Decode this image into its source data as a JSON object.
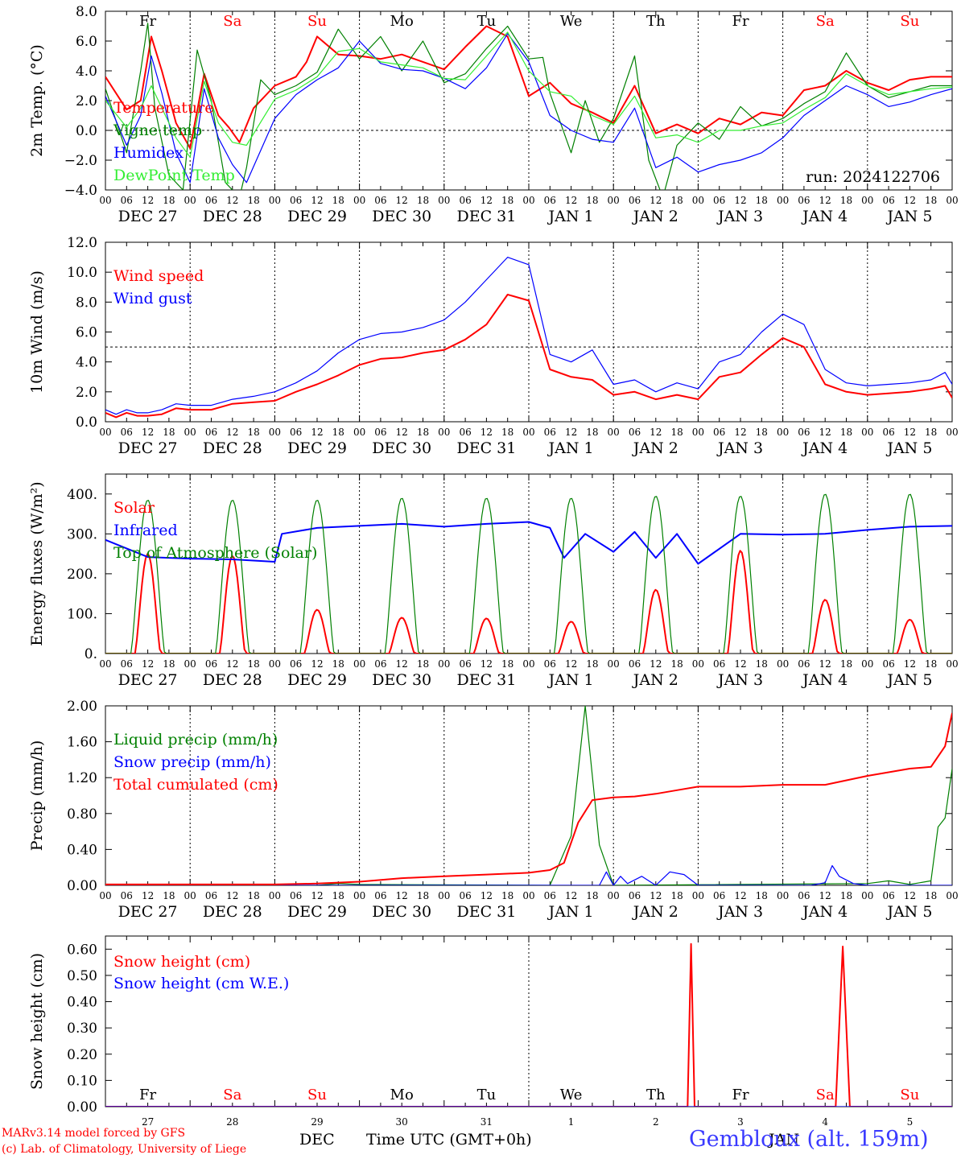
{
  "run_label": "run: 2024122706",
  "footer": {
    "model": "MARv3.14 model forced by GFS",
    "lab": "(c) Lab. of Climatology, University of Liege",
    "xlabel": "Time UTC (GMT+0h)",
    "month_left": "DEC",
    "month_right": "JAN",
    "station": "Gembloux (alt. 159m)"
  },
  "days": {
    "weekdays": [
      "Fr",
      "Sa",
      "Su",
      "Mo",
      "Tu",
      "We",
      "Th",
      "Fr",
      "Sa",
      "Su"
    ],
    "weekend_flags": [
      false,
      true,
      true,
      false,
      false,
      false,
      false,
      false,
      true,
      true
    ],
    "date_labels": [
      "DEC 27",
      "DEC 28",
      "DEC 29",
      "DEC 30",
      "DEC 31",
      "JAN  1",
      "JAN  2",
      "JAN  3",
      "JAN  4",
      "JAN  5"
    ],
    "day_numbers": [
      "27",
      "28",
      "29",
      "30",
      "31",
      "1",
      "2",
      "3",
      "4",
      "5"
    ],
    "hour_ticks": [
      "00",
      "06",
      "12",
      "18"
    ],
    "last_tick": "00"
  },
  "colors": {
    "red": "#ff0000",
    "green": "#008000",
    "blue": "#0000ff",
    "lightgreen": "#33ee33",
    "grid": "#000000"
  },
  "chart_data": [
    {
      "type": "line",
      "id": "temp",
      "ylabel": "2m Temp. (°C)",
      "ylim": [
        -4,
        8
      ],
      "yticks": [
        "8.0",
        "6.0",
        "4.0",
        "2.0",
        "0.0",
        "−2.0",
        "−4.0"
      ],
      "x_unit": "hours since DEC 27 00 UTC",
      "xlim": [
        0,
        240
      ],
      "ref_line": 0,
      "series": [
        {
          "name": "Temperature",
          "color": "red",
          "x": [
            0,
            6,
            10,
            13,
            16,
            20,
            24,
            28,
            32,
            35,
            38,
            42,
            48,
            54,
            57,
            60,
            66,
            72,
            78,
            84,
            90,
            96,
            102,
            108,
            114,
            120,
            126,
            132,
            138,
            144,
            150,
            156,
            162,
            168,
            174,
            180,
            186,
            192,
            198,
            204,
            210,
            216,
            222,
            228,
            234,
            240
          ],
          "y": [
            3.6,
            1.4,
            2.0,
            6.3,
            4.0,
            0.5,
            -1.2,
            3.8,
            1.0,
            0.2,
            -0.8,
            1.5,
            3.0,
            3.6,
            4.6,
            6.3,
            5.1,
            5.0,
            4.8,
            5.1,
            4.6,
            4.1,
            5.6,
            7.0,
            6.3,
            2.3,
            3.2,
            1.8,
            1.2,
            0.5,
            3.0,
            -0.2,
            0.4,
            -0.2,
            0.8,
            0.4,
            1.2,
            1.0,
            2.7,
            3.0,
            4.0,
            3.2,
            2.7,
            3.4,
            3.6,
            3.6
          ]
        },
        {
          "name": "Vigne temp",
          "color": "green",
          "x": [
            0,
            6,
            10,
            12,
            14,
            18,
            22,
            26,
            30,
            34,
            38,
            40,
            44,
            48,
            54,
            60,
            66,
            72,
            78,
            84,
            90,
            96,
            102,
            108,
            114,
            120,
            124,
            126,
            132,
            136,
            140,
            144,
            150,
            154,
            158,
            162,
            168,
            174,
            180,
            186,
            192,
            198,
            204,
            210,
            216,
            222,
            228,
            234,
            240
          ],
          "y": [
            2.8,
            -1.5,
            4.0,
            7.2,
            1.5,
            -3.0,
            -4.0,
            5.4,
            2.0,
            -3.5,
            -4.5,
            -2.5,
            3.4,
            2.4,
            3.0,
            3.9,
            6.8,
            4.8,
            6.3,
            4.0,
            6.0,
            3.2,
            3.8,
            5.5,
            7.0,
            4.8,
            4.9,
            2.5,
            -1.5,
            2.0,
            -0.8,
            0.8,
            5.0,
            -2.0,
            -4.5,
            -1.0,
            0.5,
            -0.6,
            1.6,
            0.3,
            0.8,
            1.8,
            2.6,
            5.2,
            3.0,
            2.2,
            2.6,
            3.0,
            3.0
          ]
        },
        {
          "name": "Humidex",
          "color": "blue",
          "x": [
            0,
            6,
            10,
            13,
            16,
            20,
            24,
            28,
            32,
            36,
            40,
            48,
            54,
            60,
            66,
            72,
            78,
            84,
            90,
            96,
            102,
            108,
            114,
            120,
            126,
            132,
            138,
            144,
            150,
            156,
            162,
            168,
            174,
            180,
            186,
            192,
            198,
            204,
            210,
            216,
            222,
            228,
            234,
            240
          ],
          "y": [
            2.3,
            -1.0,
            1.0,
            5.0,
            2.5,
            -1.5,
            -3.5,
            2.8,
            -0.5,
            -2.3,
            -3.5,
            0.8,
            2.4,
            3.4,
            4.2,
            6.0,
            4.5,
            4.1,
            4.0,
            3.5,
            2.8,
            4.2,
            6.5,
            4.6,
            1.0,
            0.0,
            -0.6,
            -0.8,
            1.5,
            -2.5,
            -1.8,
            -2.8,
            -2.3,
            -2.0,
            -1.5,
            -0.5,
            1.0,
            2.0,
            3.0,
            2.4,
            1.6,
            1.9,
            2.4,
            2.8
          ]
        },
        {
          "name": "DewPoint Temp",
          "color": "lightgreen",
          "x": [
            0,
            6,
            10,
            13,
            16,
            20,
            24,
            28,
            32,
            36,
            40,
            48,
            54,
            60,
            66,
            72,
            78,
            84,
            90,
            96,
            102,
            108,
            114,
            120,
            126,
            132,
            138,
            144,
            150,
            156,
            162,
            168,
            174,
            180,
            186,
            192,
            198,
            204,
            210,
            216,
            222,
            228,
            234,
            240
          ],
          "y": [
            2.0,
            0.2,
            1.5,
            3.0,
            1.5,
            -0.5,
            -1.8,
            3.3,
            0.5,
            -0.8,
            -1.0,
            2.1,
            2.7,
            3.6,
            5.3,
            5.5,
            4.6,
            4.4,
            4.2,
            3.5,
            3.4,
            5.0,
            6.6,
            4.0,
            2.6,
            2.3,
            1.0,
            0.4,
            2.3,
            -0.5,
            -0.3,
            -0.8,
            0.0,
            0.0,
            0.3,
            0.5,
            1.4,
            2.2,
            3.8,
            3.0,
            2.4,
            2.6,
            2.8,
            2.9
          ]
        }
      ]
    },
    {
      "type": "line",
      "id": "wind",
      "ylabel": "10m Wind (m/s)",
      "ylim": [
        0,
        12
      ],
      "yticks": [
        "12.0",
        "10.0",
        "8.0",
        "6.0",
        "4.0",
        "2.0",
        "0.0"
      ],
      "x_unit": "hours since DEC 27 00 UTC",
      "xlim": [
        0,
        240
      ],
      "ref_line": 5,
      "series": [
        {
          "name": "Wind speed",
          "color": "red",
          "x": [
            0,
            3,
            6,
            9,
            12,
            16,
            20,
            24,
            30,
            36,
            42,
            48,
            54,
            60,
            66,
            72,
            78,
            84,
            90,
            96,
            102,
            108,
            114,
            120,
            126,
            132,
            138,
            144,
            150,
            156,
            162,
            168,
            174,
            180,
            186,
            192,
            198,
            204,
            210,
            216,
            222,
            228,
            234,
            238,
            240
          ],
          "y": [
            0.6,
            0.3,
            0.6,
            0.4,
            0.4,
            0.5,
            0.9,
            0.8,
            0.8,
            1.2,
            1.3,
            1.4,
            2.0,
            2.5,
            3.1,
            3.8,
            4.2,
            4.3,
            4.6,
            4.8,
            5.5,
            6.5,
            8.5,
            8.1,
            3.5,
            3.0,
            2.8,
            1.8,
            2.0,
            1.5,
            1.8,
            1.5,
            3.0,
            3.3,
            4.5,
            5.6,
            5.0,
            2.5,
            2.0,
            1.8,
            1.9,
            2.0,
            2.2,
            2.4,
            1.6
          ]
        },
        {
          "name": "Wind gust",
          "color": "blue",
          "x": [
            0,
            3,
            6,
            9,
            12,
            16,
            20,
            24,
            30,
            36,
            42,
            48,
            54,
            60,
            66,
            72,
            78,
            84,
            90,
            96,
            102,
            108,
            114,
            120,
            126,
            132,
            138,
            144,
            150,
            156,
            162,
            168,
            174,
            180,
            186,
            192,
            198,
            204,
            210,
            216,
            222,
            228,
            234,
            238,
            240
          ],
          "y": [
            0.8,
            0.5,
            0.8,
            0.6,
            0.6,
            0.8,
            1.2,
            1.1,
            1.1,
            1.5,
            1.7,
            2.0,
            2.6,
            3.4,
            4.6,
            5.5,
            5.9,
            6.0,
            6.3,
            6.8,
            8.0,
            9.5,
            11.0,
            10.5,
            4.5,
            4.0,
            4.8,
            2.5,
            2.8,
            2.0,
            2.6,
            2.2,
            4.0,
            4.5,
            6.0,
            7.2,
            6.5,
            3.5,
            2.6,
            2.4,
            2.5,
            2.6,
            2.8,
            3.3,
            2.5
          ]
        }
      ]
    },
    {
      "type": "line",
      "id": "energy",
      "ylabel": "Energy fluxes (W/m²)",
      "ylim": [
        0,
        450
      ],
      "yticks": [
        "400.",
        "300.",
        "200.",
        "100.",
        "0."
      ],
      "ytick_values": [
        400,
        300,
        200,
        100,
        0
      ],
      "x_unit": "hours since DEC 27 00 UTC",
      "xlim": [
        0,
        240
      ],
      "series": [
        {
          "name": "Solar",
          "color": "red",
          "daily_peaks": [
            250,
            245,
            110,
            90,
            88,
            80,
            160,
            258,
            135,
            85
          ]
        },
        {
          "name": "Infrared",
          "color": "blue",
          "x": [
            0,
            12,
            24,
            36,
            48,
            50,
            60,
            72,
            84,
            96,
            108,
            120,
            126,
            130,
            136,
            144,
            150,
            156,
            162,
            168,
            180,
            192,
            204,
            216,
            228,
            240
          ],
          "y": [
            285,
            242,
            238,
            236,
            230,
            300,
            315,
            320,
            325,
            318,
            325,
            330,
            315,
            240,
            300,
            255,
            305,
            240,
            300,
            225,
            300,
            298,
            300,
            310,
            318,
            320
          ]
        },
        {
          "name": "Top of Atmosphere (Solar)",
          "color": "green",
          "daily_peaks": [
            385,
            385,
            385,
            390,
            390,
            390,
            395,
            395,
            400,
            400
          ]
        }
      ]
    },
    {
      "type": "line",
      "id": "precip",
      "ylabel": "Precip (mm/h)",
      "ylim": [
        0,
        2.0
      ],
      "yticks": [
        "2.00",
        "1.60",
        "1.20",
        "0.80",
        "0.40",
        "0.00"
      ],
      "x_unit": "hours since DEC 27 00 UTC",
      "xlim": [
        0,
        240
      ],
      "series": [
        {
          "name": "Liquid precip (mm/h)",
          "color": "green",
          "x": [
            0,
            60,
            66,
            72,
            126,
            132,
            136,
            140,
            144,
            216,
            222,
            228,
            234,
            236,
            238,
            240
          ],
          "y": [
            0,
            0,
            0.02,
            0.01,
            0,
            0.55,
            2.0,
            0.45,
            0,
            0.02,
            0.05,
            0.01,
            0.05,
            0.65,
            0.75,
            1.3
          ]
        },
        {
          "name": "Snow precip (mm/h)",
          "color": "blue",
          "x": [
            0,
            140,
            142,
            144,
            146,
            148,
            152,
            156,
            160,
            164,
            168,
            200,
            204,
            206,
            208,
            212,
            216,
            240
          ],
          "y": [
            0,
            0,
            0.15,
            0,
            0.1,
            0.02,
            0.1,
            0.0,
            0.15,
            0.12,
            0,
            0,
            0.03,
            0.22,
            0.1,
            0.02,
            0,
            0
          ]
        },
        {
          "name": "Total cumulated (cm)",
          "color": "red",
          "x": [
            0,
            24,
            48,
            60,
            72,
            84,
            96,
            108,
            120,
            126,
            130,
            134,
            138,
            144,
            150,
            156,
            162,
            168,
            180,
            192,
            204,
            216,
            228,
            234,
            238,
            240
          ],
          "y": [
            0.01,
            0.01,
            0.01,
            0.02,
            0.04,
            0.08,
            0.1,
            0.12,
            0.14,
            0.17,
            0.25,
            0.7,
            0.95,
            0.98,
            0.99,
            1.02,
            1.06,
            1.1,
            1.1,
            1.12,
            1.12,
            1.22,
            1.3,
            1.32,
            1.55,
            1.92
          ]
        }
      ]
    },
    {
      "type": "line",
      "id": "snow",
      "ylabel": "Snow height (cm)",
      "ylim": [
        0,
        0.65
      ],
      "yticks": [
        "0.60",
        "0.50",
        "0.40",
        "0.30",
        "0.20",
        "0.10",
        "0.00"
      ],
      "ytick_values": [
        0.6,
        0.5,
        0.4,
        0.3,
        0.2,
        0.1,
        0.0
      ],
      "x_unit": "hours since DEC 27 00 UTC",
      "xlim": [
        0,
        240
      ],
      "series": [
        {
          "name": "Snow height (cm)",
          "color": "red",
          "x": [
            0,
            165,
            166,
            167,
            207,
            209,
            211,
            240
          ],
          "y": [
            0,
            0,
            0.62,
            0,
            0,
            0.61,
            0,
            0
          ]
        },
        {
          "name": "Snow height (cm W.E.)",
          "color": "blue",
          "x": [
            0,
            240
          ],
          "y": [
            0,
            0
          ]
        }
      ]
    }
  ]
}
